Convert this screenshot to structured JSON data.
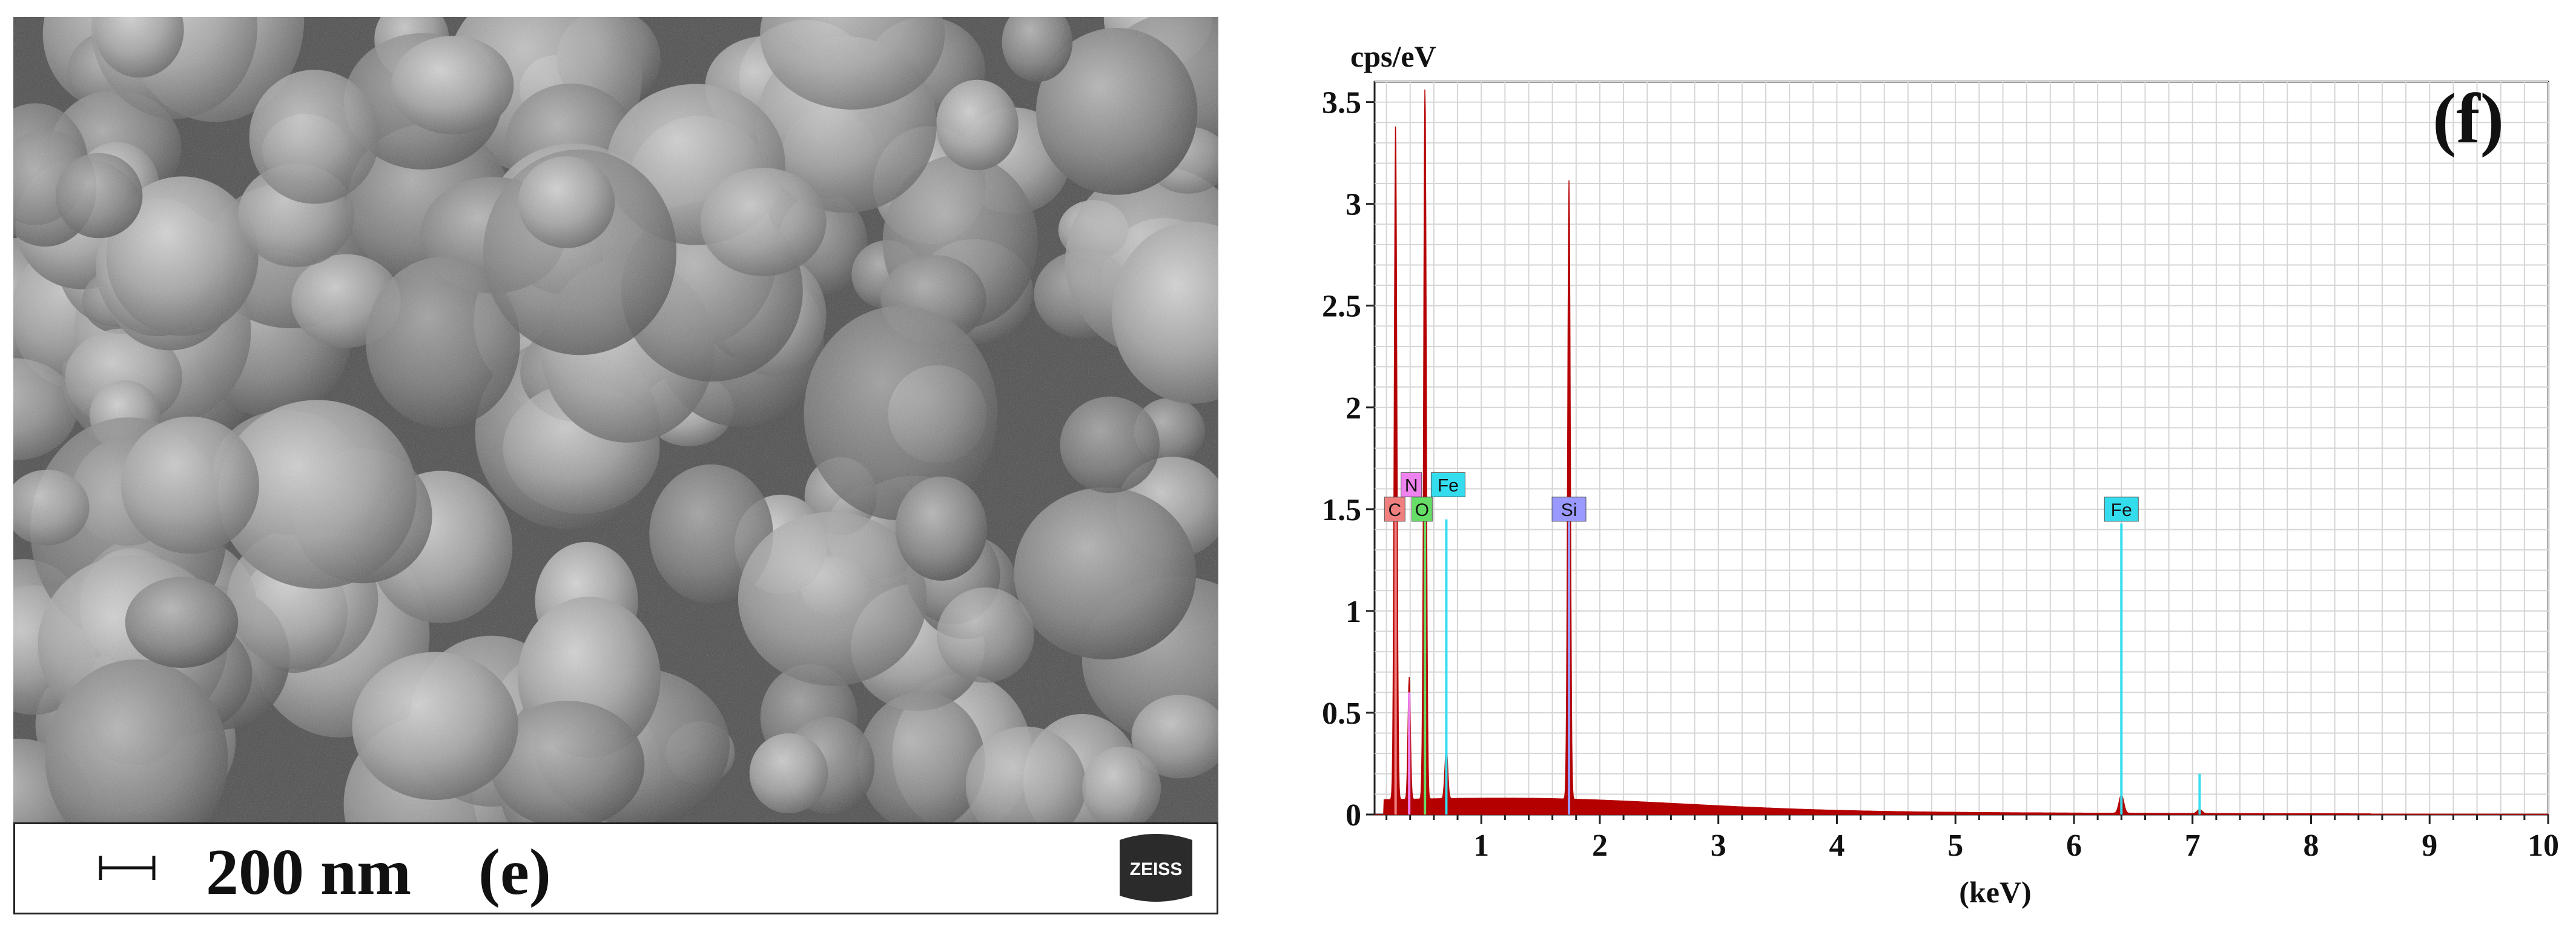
{
  "sem_panel": {
    "scale_label": "200 nm",
    "panel_label": "(e)",
    "logo_text": "ZEISS"
  },
  "chart_data": {
    "type": "bar",
    "title": "",
    "panel_label": "(f)",
    "ylabel": "cps/eV",
    "xlabel": "(keV)",
    "xlim": [
      0.1,
      10
    ],
    "ylim": [
      0,
      3.6
    ],
    "xticks": [
      1,
      2,
      3,
      4,
      5,
      6,
      7,
      8,
      9,
      10
    ],
    "yticks": [
      0,
      0.5,
      1,
      1.5,
      2,
      2.5,
      3,
      3.5
    ],
    "ytick_labels": [
      "0",
      "0.5",
      "1",
      "1.5",
      "2",
      "2.5",
      "3",
      "3.5"
    ],
    "grid": true,
    "colors": {
      "spectrum": "#b50000",
      "C": "#f08080",
      "N": "#ee82ee",
      "O": "#66dd66",
      "Fe": "#33ddee",
      "Si": "#9999ff"
    },
    "peaks": [
      {
        "element": "C",
        "x": 0.277,
        "y": 3.32
      },
      {
        "element": "O",
        "x": 0.525,
        "y": 3.5
      },
      {
        "element": "N",
        "x": 0.392,
        "y": 0.6
      },
      {
        "element": "Fe",
        "x": 0.705,
        "y": 1.45
      },
      {
        "element": "Si",
        "x": 1.74,
        "y": 3.04
      },
      {
        "element": "Fe",
        "x": 6.4,
        "y": 1.43
      },
      {
        "element": "Fe",
        "x": 7.06,
        "y": 0.2
      }
    ],
    "element_labels": [
      {
        "text": "N",
        "x": 0.41,
        "y": 1.62,
        "color_key": "N"
      },
      {
        "text": "Fe",
        "x": 0.72,
        "y": 1.62,
        "color_key": "Fe"
      },
      {
        "text": "C",
        "x": 0.27,
        "y": 1.5,
        "color_key": "C"
      },
      {
        "text": "O",
        "x": 0.5,
        "y": 1.5,
        "color_key": "O"
      },
      {
        "text": "Si",
        "x": 1.74,
        "y": 1.5,
        "color_key": "Si"
      },
      {
        "text": "Fe",
        "x": 6.4,
        "y": 1.5,
        "color_key": "Fe"
      }
    ]
  }
}
